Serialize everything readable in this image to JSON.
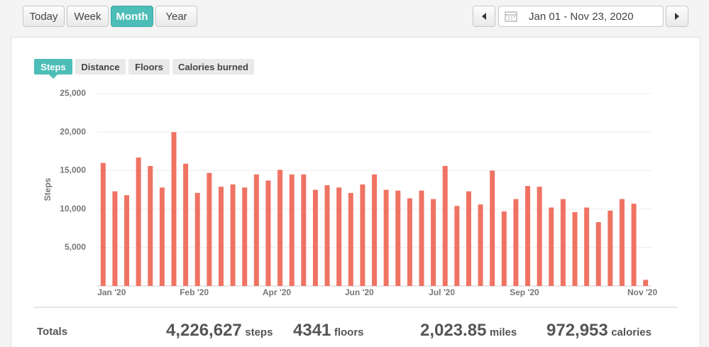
{
  "toolbar": {
    "ranges": [
      "Today",
      "Week",
      "Month",
      "Year"
    ],
    "date_range": "Jan 01 - Nov 23, 2020"
  },
  "tabs": [
    "Steps",
    "Distance",
    "Floors",
    "Calories burned"
  ],
  "chart_data": {
    "type": "bar",
    "y_label": "Steps",
    "color": "#ef7363",
    "grid": true,
    "categories": [
      "Jan '20",
      null,
      null,
      null,
      null,
      null,
      null,
      "Feb '20",
      null,
      null,
      null,
      null,
      null,
      null,
      "Apr '20",
      null,
      null,
      null,
      null,
      null,
      null,
      "Jun '20",
      null,
      null,
      null,
      null,
      null,
      null,
      "Jul '20",
      null,
      null,
      null,
      null,
      null,
      null,
      "Sep '20",
      null,
      null,
      null,
      null,
      null,
      null,
      null,
      null,
      null,
      "Nov '20",
      null
    ],
    "values": [
      16000,
      12300,
      11800,
      16700,
      15600,
      12800,
      20000,
      15900,
      12100,
      14700,
      12900,
      13200,
      12800,
      14500,
      13700,
      15100,
      14500,
      14500,
      12500,
      13100,
      12800,
      12100,
      13200,
      14500,
      12500,
      12400,
      11400,
      12400,
      11300,
      15600,
      10400,
      12300,
      10600,
      15000,
      9700,
      11300,
      13000,
      12900,
      10200,
      11300,
      9600,
      10200,
      8300,
      9800,
      11300,
      10700,
      800
    ],
    "ylim": [
      0,
      25000
    ],
    "yticks": [
      {
        "value": 5000,
        "label": "5,000"
      },
      {
        "value": 10000,
        "label": "10,000"
      },
      {
        "value": 15000,
        "label": "15,000"
      },
      {
        "value": 20000,
        "label": "20,000"
      },
      {
        "value": 25000,
        "label": "25,000"
      }
    ]
  },
  "totals": {
    "label": "Totals",
    "items": [
      {
        "value": "4,226,627",
        "unit": "steps"
      },
      {
        "value": "4341",
        "unit": "floors"
      },
      {
        "value": "2,023.85",
        "unit": "miles"
      },
      {
        "value": "972,953",
        "unit": "calories"
      }
    ]
  }
}
